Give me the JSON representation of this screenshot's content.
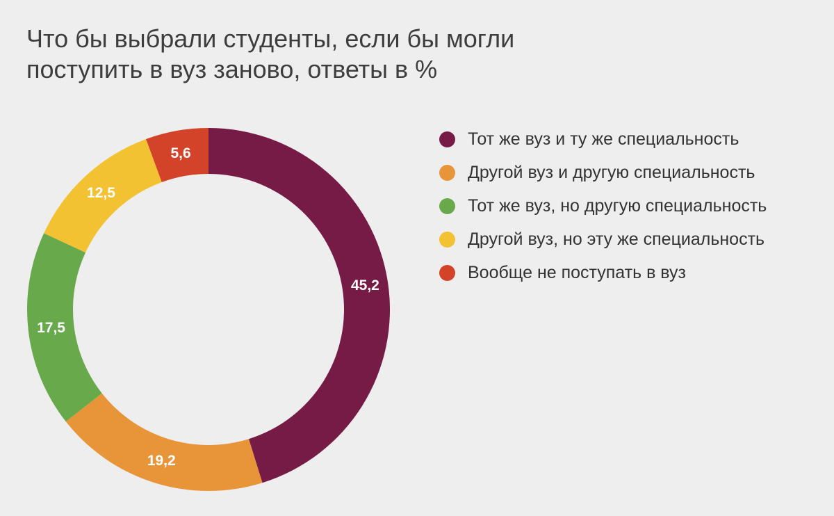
{
  "title": {
    "line1": "Что бы выбрали студенты, если бы могли",
    "line2": "поступить в вуз заново, ответы в %"
  },
  "chart_data": {
    "type": "pie",
    "style": "donut",
    "title": "Что бы выбрали студенты, если бы могли поступить в вуз заново, ответы в %",
    "legend_position": "right",
    "slices": [
      {
        "label": "Тот же вуз и ту же специальность",
        "value": 45.2,
        "display": "45,2",
        "color": "#761a46"
      },
      {
        "label": "Другой вуз и другую специальность",
        "value": 19.2,
        "display": "19,2",
        "color": "#e8953a"
      },
      {
        "label": "Тот же вуз, но другую специальность",
        "value": 17.5,
        "display": "17,5",
        "color": "#68a94c"
      },
      {
        "label": "Другой вуз, но эту же специальность",
        "value": 12.5,
        "display": "12,5",
        "color": "#f2c232"
      },
      {
        "label": "Вообще не поступать в вуз",
        "value": 5.6,
        "display": "5,6",
        "color": "#d2432a"
      }
    ]
  }
}
